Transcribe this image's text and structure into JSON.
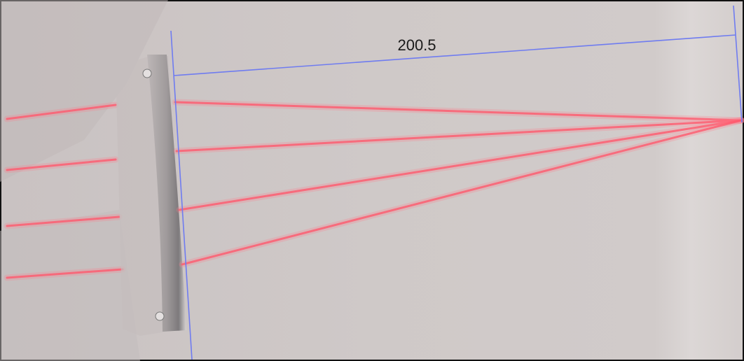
{
  "measurement": {
    "label": "200.5"
  }
}
